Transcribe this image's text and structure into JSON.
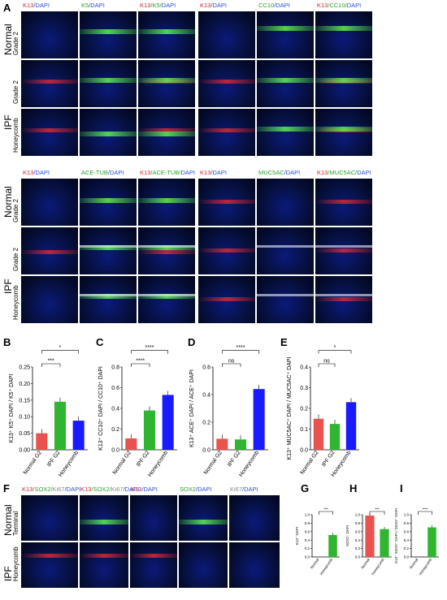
{
  "panel_labels": [
    "A",
    "B",
    "C",
    "D",
    "E",
    "F",
    "G",
    "H",
    "I"
  ],
  "groups": {
    "normal": "Normal",
    "ipf": "IPF"
  },
  "rows_a_top": [
    "Grade 2",
    "Grade 2",
    "Honeycomb"
  ],
  "rows_a_bot": [
    "Grade 2",
    "Grade 2",
    "Honeycomb"
  ],
  "a_top_left_cols": [
    [
      {
        "t": "K13",
        "c": "red"
      },
      {
        "t": "/DAPI",
        "c": "blue"
      }
    ],
    [
      {
        "t": "K5",
        "c": "green"
      },
      {
        "t": "/DAPI",
        "c": "blue"
      }
    ],
    [
      {
        "t": "K13",
        "c": "red"
      },
      {
        "t": "/K5/",
        "c": "green"
      },
      {
        "t": "DAPI",
        "c": "blue"
      }
    ]
  ],
  "a_top_right_cols": [
    [
      {
        "t": "K13",
        "c": "red"
      },
      {
        "t": "/DAPI",
        "c": "blue"
      }
    ],
    [
      {
        "t": "CC10",
        "c": "green"
      },
      {
        "t": "/DAPI",
        "c": "blue"
      }
    ],
    [
      {
        "t": "K13",
        "c": "red"
      },
      {
        "t": "/CC10/",
        "c": "green"
      },
      {
        "t": "DAPI",
        "c": "blue"
      }
    ]
  ],
  "a_bot_left_cols": [
    [
      {
        "t": "K13",
        "c": "red"
      },
      {
        "t": "/DAPI",
        "c": "blue"
      }
    ],
    [
      {
        "t": "ACE-TUB",
        "c": "green"
      },
      {
        "t": "/DAPI",
        "c": "blue"
      }
    ],
    [
      {
        "t": "K13",
        "c": "red"
      },
      {
        "t": "/ACE-TUB/",
        "c": "green"
      },
      {
        "t": "DAPI",
        "c": "blue"
      }
    ]
  ],
  "a_bot_right_cols": [
    [
      {
        "t": "K13",
        "c": "red"
      },
      {
        "t": "/DAPI",
        "c": "blue"
      }
    ],
    [
      {
        "t": "MUC5AC",
        "c": "green"
      },
      {
        "t": "/DAPI",
        "c": "blue"
      }
    ],
    [
      {
        "t": "K13",
        "c": "red"
      },
      {
        "t": "/MUC5AC/",
        "c": "green"
      },
      {
        "t": "DAPI",
        "c": "blue"
      }
    ]
  ],
  "f_cols": [
    [
      {
        "t": "K13",
        "c": "red"
      },
      {
        "t": "/SOX2/",
        "c": "green"
      },
      {
        "t": "Ki67",
        "c": "white"
      },
      {
        "t": "/DAPI",
        "c": "blue"
      }
    ],
    [
      {
        "t": "K13",
        "c": "red"
      },
      {
        "t": "/SOX2/",
        "c": "green"
      },
      {
        "t": "Ki67",
        "c": "white"
      },
      {
        "t": "/DAPI",
        "c": "blue"
      }
    ],
    [
      {
        "t": "K13",
        "c": "red"
      },
      {
        "t": "/DAPI",
        "c": "blue"
      }
    ],
    [
      {
        "t": "SOX2",
        "c": "green"
      },
      {
        "t": "/DAPI",
        "c": "blue"
      }
    ],
    [
      {
        "t": "Ki67",
        "c": "white"
      },
      {
        "t": "/DAPI",
        "c": "blue"
      }
    ]
  ],
  "f_rows": [
    "Terminal",
    "Honeycomb"
  ],
  "chart_data": [
    {
      "panel": "B",
      "type": "bar",
      "ylabel": "K13⁺ K5⁺ DAPI / K5⁺ DAPI",
      "categories": [
        "Normal G2",
        "IPF G2",
        "Honeycomb"
      ],
      "values": [
        0.05,
        0.145,
        0.088
      ],
      "colors": [
        "#e9534f",
        "#2fb52f",
        "#1a1aff"
      ],
      "ylim": [
        0,
        0.25
      ],
      "yticks": [
        "0.00",
        "0.05",
        "0.10",
        "0.15",
        "0.20",
        "0.25"
      ],
      "sig": [
        {
          "a": 0,
          "b": 1,
          "t": "***"
        },
        {
          "a": 0,
          "b": 2,
          "t": "*"
        }
      ]
    },
    {
      "panel": "C",
      "type": "bar",
      "ylabel": "K13⁺ CC10⁺ DAPI / CC10⁺ DAPI",
      "categories": [
        "Normal G2",
        "IPF G2",
        "Honeycomb"
      ],
      "values": [
        0.11,
        0.38,
        0.53
      ],
      "colors": [
        "#e9534f",
        "#2fb52f",
        "#1a1aff"
      ],
      "ylim": [
        0,
        0.8
      ],
      "yticks": [
        "0.0",
        "0.2",
        "0.4",
        "0.6",
        "0.8"
      ],
      "sig": [
        {
          "a": 0,
          "b": 1,
          "t": "****"
        },
        {
          "a": 0,
          "b": 2,
          "t": "****"
        }
      ]
    },
    {
      "panel": "D",
      "type": "bar",
      "ylabel": "K13⁺ ACE⁺ DAPI / ACE⁺ DAPI",
      "categories": [
        "Normal G2",
        "IPF G2",
        "Honeycomb"
      ],
      "values": [
        0.08,
        0.075,
        0.44
      ],
      "colors": [
        "#e9534f",
        "#2fb52f",
        "#1a1aff"
      ],
      "ylim": [
        0,
        0.6
      ],
      "yticks": [
        "0.0",
        "0.2",
        "0.4",
        "0.6"
      ],
      "sig": [
        {
          "a": 0,
          "b": 1,
          "t": "ns"
        },
        {
          "a": 0,
          "b": 2,
          "t": "****"
        }
      ]
    },
    {
      "panel": "E",
      "type": "bar",
      "ylabel": "K13⁺ MUC5AC⁺ DAPI / MUC5AC⁺ DAPI",
      "categories": [
        "Normal G2",
        "IPF G2",
        "Honeycomb"
      ],
      "values": [
        0.15,
        0.125,
        0.23
      ],
      "colors": [
        "#e9534f",
        "#2fb52f",
        "#1a1aff"
      ],
      "ylim": [
        0,
        0.4
      ],
      "yticks": [
        "0.0",
        "0.1",
        "0.2",
        "0.3",
        "0.4"
      ],
      "sig": [
        {
          "a": 0,
          "b": 1,
          "t": "ns"
        },
        {
          "a": 0,
          "b": 2,
          "t": "*"
        }
      ]
    },
    {
      "panel": "G",
      "type": "bar",
      "ylabel": "K13⁺ DAPI",
      "categories": [
        "Normal",
        "Honeycomb"
      ],
      "values": [
        0.0,
        0.52
      ],
      "colors": [
        "#e9534f",
        "#2fb52f"
      ],
      "ylim": [
        0,
        1.0
      ],
      "yticks": [
        "0.0",
        "0.2",
        "0.4",
        "0.6",
        "0.8",
        "1.0"
      ],
      "sig": [
        {
          "a": 0,
          "b": 1,
          "t": "***"
        }
      ]
    },
    {
      "panel": "H",
      "type": "bar",
      "ylabel": "SOX2⁺ DAPI",
      "categories": [
        "Normal",
        "Honeycomb"
      ],
      "values": [
        0.98,
        0.66
      ],
      "colors": [
        "#e9534f",
        "#2fb52f"
      ],
      "ylim": [
        0,
        1.0
      ],
      "yticks": [
        "0.0",
        "0.2",
        "0.4",
        "0.6",
        "0.8",
        "1.0"
      ],
      "sig": [
        {
          "a": 0,
          "b": 1,
          "t": "***"
        }
      ]
    },
    {
      "panel": "I",
      "type": "bar",
      "ylabel": "K13⁺ SOX2⁺ DAPI / SOX2⁺ DAPI",
      "categories": [
        "Normal",
        "Honeycomb"
      ],
      "values": [
        0.0,
        0.7
      ],
      "colors": [
        "#e9534f",
        "#2fb52f"
      ],
      "ylim": [
        0,
        1.0
      ],
      "yticks": [
        "0.0",
        "0.2",
        "0.4",
        "0.6",
        "0.8",
        "1.0"
      ],
      "sig": [
        {
          "a": 0,
          "b": 1,
          "t": "****"
        }
      ]
    }
  ]
}
